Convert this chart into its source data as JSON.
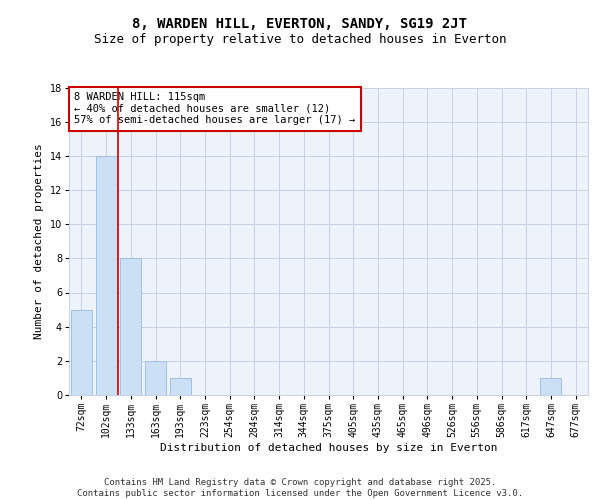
{
  "title": "8, WARDEN HILL, EVERTON, SANDY, SG19 2JT",
  "subtitle": "Size of property relative to detached houses in Everton",
  "xlabel": "Distribution of detached houses by size in Everton",
  "ylabel": "Number of detached properties",
  "categories": [
    "72sqm",
    "102sqm",
    "133sqm",
    "163sqm",
    "193sqm",
    "223sqm",
    "254sqm",
    "284sqm",
    "314sqm",
    "344sqm",
    "375sqm",
    "405sqm",
    "435sqm",
    "465sqm",
    "496sqm",
    "526sqm",
    "556sqm",
    "586sqm",
    "617sqm",
    "647sqm",
    "677sqm"
  ],
  "values": [
    5,
    14,
    8,
    2,
    1,
    0,
    0,
    0,
    0,
    0,
    0,
    0,
    0,
    0,
    0,
    0,
    0,
    0,
    0,
    1,
    0
  ],
  "bar_color": "#cce0f5",
  "bar_edge_color": "#a0c0e0",
  "background_color": "#eef2fa",
  "grid_color": "#c8d0e8",
  "annotation_text": "8 WARDEN HILL: 115sqm\n← 40% of detached houses are smaller (12)\n57% of semi-detached houses are larger (17) →",
  "annotation_box_color": "#ffffff",
  "annotation_box_edge": "#cc0000",
  "vline_x": 1.5,
  "vline_color": "#cc0000",
  "ylim": [
    0,
    18
  ],
  "yticks": [
    0,
    2,
    4,
    6,
    8,
    10,
    12,
    14,
    16,
    18
  ],
  "footer": "Contains HM Land Registry data © Crown copyright and database right 2025.\nContains public sector information licensed under the Open Government Licence v3.0.",
  "title_fontsize": 10,
  "subtitle_fontsize": 9,
  "axis_label_fontsize": 8,
  "tick_fontsize": 7,
  "annotation_fontsize": 7.5,
  "footer_fontsize": 6.5
}
